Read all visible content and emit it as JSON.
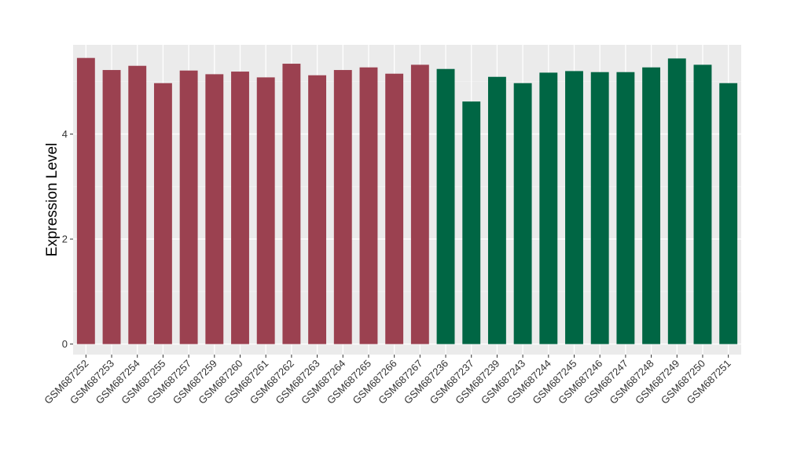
{
  "chart_data": {
    "type": "bar",
    "title": "",
    "xlabel": "",
    "ylabel": "Expression Level",
    "ylim": [
      -0.2,
      5.7
    ],
    "yticks": [
      0,
      2,
      4
    ],
    "grid": true,
    "legend": "none",
    "categories": [
      "GSM687252",
      "GSM687253",
      "GSM687254",
      "GSM687255",
      "GSM687257",
      "GSM687259",
      "GSM687260",
      "GSM687261",
      "GSM687262",
      "GSM687263",
      "GSM687264",
      "GSM687265",
      "GSM687266",
      "GSM687267",
      "GSM687236",
      "GSM687237",
      "GSM687239",
      "GSM687243",
      "GSM687244",
      "GSM687245",
      "GSM687246",
      "GSM687247",
      "GSM687248",
      "GSM687249",
      "GSM687250",
      "GSM687251"
    ],
    "values": [
      5.45,
      5.22,
      5.3,
      4.97,
      5.21,
      5.14,
      5.19,
      5.08,
      5.34,
      5.12,
      5.22,
      5.27,
      5.15,
      5.32,
      5.24,
      4.62,
      5.09,
      4.97,
      5.17,
      5.2,
      5.18,
      5.18,
      5.27,
      5.44,
      5.32,
      4.97
    ],
    "group_colors": [
      "#9b4150",
      "#006644"
    ],
    "groups": [
      0,
      0,
      0,
      0,
      0,
      0,
      0,
      0,
      0,
      0,
      0,
      0,
      0,
      0,
      1,
      1,
      1,
      1,
      1,
      1,
      1,
      1,
      1,
      1,
      1,
      1
    ]
  },
  "colors": {
    "panel": "#ebebeb",
    "grid_major": "#ffffff",
    "grid_minor": "#f4f4f4"
  }
}
